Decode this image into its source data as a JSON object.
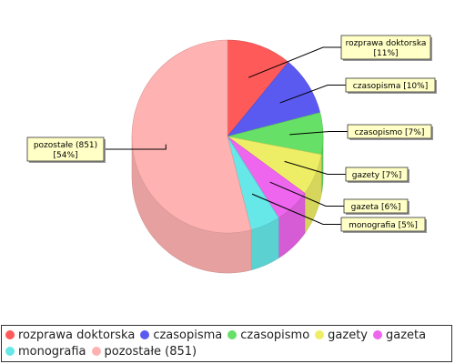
{
  "chart_data": {
    "type": "pie",
    "style": "3d",
    "title": "",
    "slices": [
      {
        "label": "rozprawa doktorska",
        "callout": [
          "rozprawa doktorska",
          "[11%]"
        ],
        "percent": 11,
        "color": "#ff5a5a"
      },
      {
        "label": "czasopisma",
        "callout": [
          "czasopisma [10%]"
        ],
        "percent": 10,
        "color": "#5a5af0"
      },
      {
        "label": "czasopismo",
        "callout": [
          "czasopismo [7%]"
        ],
        "percent": 7,
        "color": "#66e066"
      },
      {
        "label": "gazety",
        "callout": [
          "gazety [7%]"
        ],
        "percent": 7,
        "color": "#eeee66"
      },
      {
        "label": "gazeta",
        "callout": [
          "gazeta [6%]"
        ],
        "percent": 6,
        "color": "#ee66ee"
      },
      {
        "label": "monografia",
        "callout": [
          "monografia [5%]"
        ],
        "percent": 5,
        "color": "#66e8e8"
      },
      {
        "label": "pozostałe (851)",
        "callout": [
          "pozostałe (851)",
          "[54%]"
        ],
        "percent": 54,
        "color": "#ffb2b2"
      }
    ],
    "legend_position": "bottom"
  }
}
